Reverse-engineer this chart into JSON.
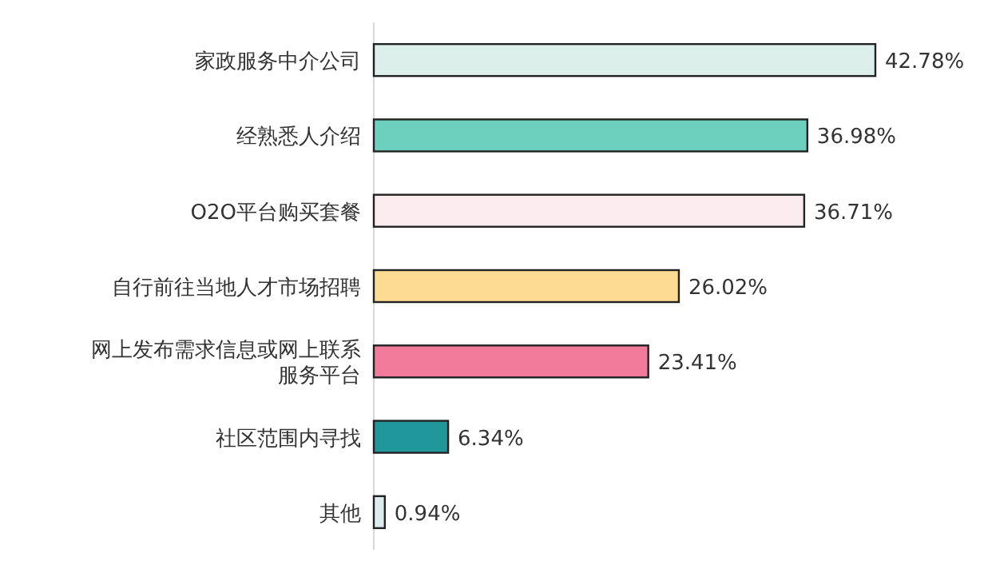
{
  "chart_data": {
    "type": "bar",
    "orientation": "horizontal",
    "value_labels": [
      "42.78%",
      "36.98%",
      "36.71%",
      "26.02%",
      "23.41%",
      "6.34%",
      "0.94%"
    ],
    "categories": [
      "家政服务中介公司",
      "经熟悉人介绍",
      "O2O平台购买套餐",
      "自行前往当地人才市场招聘",
      "网上发布需求信息或网上联系服务平台",
      "社区范围内寻找",
      "其他"
    ],
    "values": [
      42.78,
      36.98,
      36.71,
      26.02,
      23.41,
      6.34,
      0.94
    ],
    "colors": [
      "#dcefea",
      "#6dcfbd",
      "#fcecef",
      "#fbdc92",
      "#f27b9c",
      "#20979a",
      "#dcecec"
    ]
  }
}
